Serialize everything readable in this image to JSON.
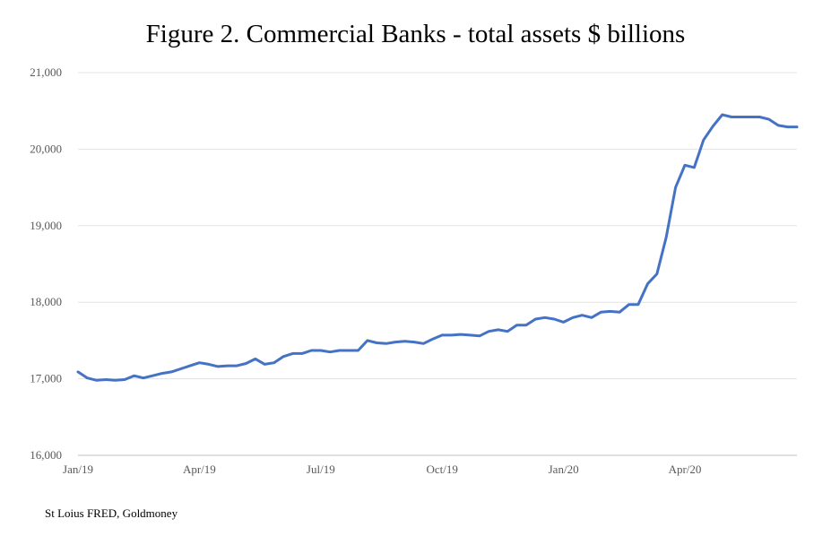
{
  "chart_data": {
    "type": "line",
    "title": "Figure 2. Commercial Banks - total assets $ billions",
    "xlabel": "",
    "ylabel": "",
    "ylim": [
      16000,
      21000
    ],
    "yticks": [
      16000,
      17000,
      18000,
      19000,
      20000,
      21000
    ],
    "ytick_labels": [
      "16,000",
      "17,000",
      "18,000",
      "19,000",
      "20,000",
      "21,000"
    ],
    "xtick_labels": [
      {
        "label": "Jan/19",
        "index": 0
      },
      {
        "label": "Apr/19",
        "index": 13
      },
      {
        "label": "Jul/19",
        "index": 26
      },
      {
        "label": "Oct/19",
        "index": 39
      },
      {
        "label": "Jan/20",
        "index": 52
      },
      {
        "label": "Apr/20",
        "index": 65
      }
    ],
    "grid": true,
    "color": "#4472C4",
    "series": [
      {
        "values": [
          17090,
          17010,
          16980,
          16990,
          16980,
          16990,
          17040,
          17010,
          17040,
          17070,
          17090,
          17130,
          17170,
          17210,
          17190,
          17160,
          17170,
          17170,
          17200,
          17260,
          17190,
          17210,
          17290,
          17330,
          17330,
          17370,
          17370,
          17350,
          17370,
          17370,
          17370,
          17500,
          17470,
          17460,
          17480,
          17490,
          17480,
          17460,
          17520,
          17570,
          17570,
          17580,
          17570,
          17560,
          17620,
          17640,
          17620,
          17700,
          17700,
          17780,
          17800,
          17780,
          17740,
          17800,
          17830,
          17800,
          17870,
          17880,
          17870,
          17970,
          17970,
          18240,
          18370,
          18850,
          19500,
          19790,
          19760,
          20120,
          20300,
          20450,
          20420,
          20420,
          20420,
          20420,
          20390,
          20310,
          20290,
          20290
        ]
      }
    ]
  },
  "source": "St Loius FRED, Goldmoney"
}
